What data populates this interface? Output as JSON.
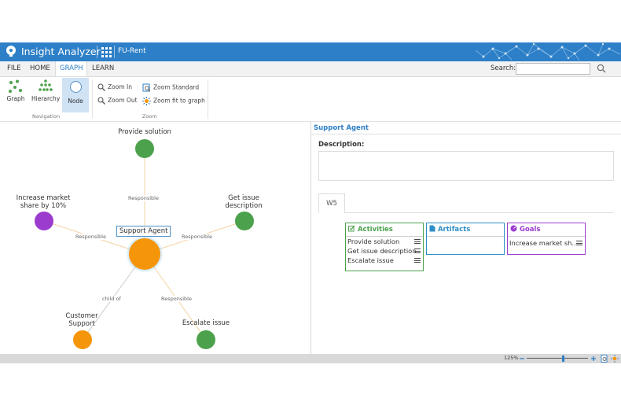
{
  "app": {
    "title": "Insight Analyzer",
    "project": "FU-Rent",
    "brand_color": "#2d7fc7"
  },
  "menu": {
    "items": [
      "FILE",
      "HOME",
      "GRAPH",
      "LEARN"
    ],
    "active": "GRAPH"
  },
  "search": {
    "label": "Search:",
    "value": ""
  },
  "ribbon": {
    "navigation": {
      "group_label": "Navigation",
      "graph": "Graph",
      "hierarchy": "Hierarchy",
      "node": "Node"
    },
    "zoom": {
      "group_label": "Zoom",
      "zoom_in": "Zoom In",
      "zoom_out": "Zoom Out",
      "zoom_standard": "Zoom Standard",
      "zoom_fit": "Zoom fit to graph"
    }
  },
  "graph": {
    "nodes": {
      "provide_solution": "Provide solution",
      "increase_market_1": "Increase market",
      "increase_market_2": "share by 10%",
      "get_issue_1": "Get issue",
      "get_issue_2": "description",
      "support_agent": "Support Agent",
      "customer_support_1": "Customer",
      "customer_support_2": "Support",
      "escalate_issue": "Escalate issue"
    },
    "edges": {
      "responsible": "Responsible",
      "child_of": "child of"
    },
    "colors": {
      "activity": "#4ca24c",
      "goal": "#9b3ccf",
      "agent": "#f5960a"
    }
  },
  "details": {
    "title": "Support Agent",
    "description_label": "Description:",
    "description_value": "",
    "tab": "W5",
    "activities": {
      "title": "Activities",
      "items": [
        "Provide solution",
        "Get issue description",
        "Escalate issue"
      ],
      "color": "#4ca24c"
    },
    "artifacts": {
      "title": "Artifacts",
      "items": [],
      "color": "#2d8fc7"
    },
    "goals": {
      "title": "Goals",
      "items": [
        "Increase market sh..."
      ],
      "color": "#9b3ccf"
    }
  },
  "status": {
    "zoom": "125%"
  }
}
